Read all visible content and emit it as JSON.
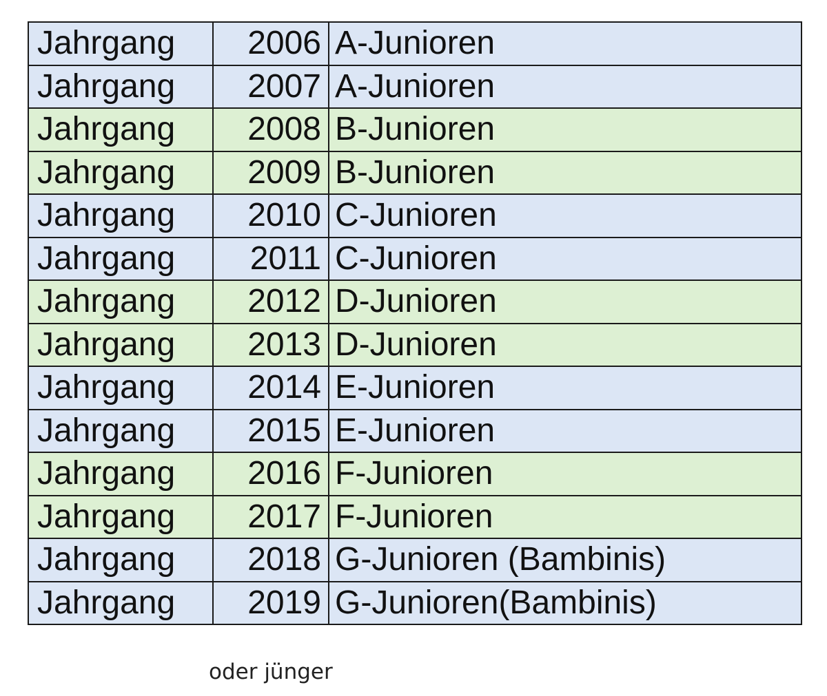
{
  "colors": {
    "blue_row": "#dce6f5",
    "green_row": "#ddf0d3",
    "border": "#1a1a1a"
  },
  "rows": [
    {
      "label": "Jahrgang",
      "year": "2006",
      "team": "A-Junioren",
      "shade": "blue"
    },
    {
      "label": "Jahrgang",
      "year": "2007",
      "team": "A-Junioren",
      "shade": "blue"
    },
    {
      "label": "Jahrgang",
      "year": "2008",
      "team": "B-Junioren",
      "shade": "green"
    },
    {
      "label": "Jahrgang",
      "year": "2009",
      "team": "B-Junioren",
      "shade": "green"
    },
    {
      "label": "Jahrgang",
      "year": "2010",
      "team": "C-Junioren",
      "shade": "blue"
    },
    {
      "label": "Jahrgang",
      "year": "2011",
      "team": "C-Junioren",
      "shade": "blue"
    },
    {
      "label": "Jahrgang",
      "year": "2012",
      "team": "D-Junioren",
      "shade": "green"
    },
    {
      "label": "Jahrgang",
      "year": "2013",
      "team": "D-Junioren",
      "shade": "green"
    },
    {
      "label": "Jahrgang",
      "year": "2014",
      "team": "E-Junioren",
      "shade": "blue"
    },
    {
      "label": "Jahrgang",
      "year": "2015",
      "team": "E-Junioren",
      "shade": "blue"
    },
    {
      "label": "Jahrgang",
      "year": "2016",
      "team": "F-Junioren",
      "shade": "green"
    },
    {
      "label": "Jahrgang",
      "year": "2017",
      "team": "F-Junioren",
      "shade": "green"
    },
    {
      "label": "Jahrgang",
      "year": "2018",
      "team": "G-Junioren (Bambinis)",
      "shade": "blue"
    },
    {
      "label": "Jahrgang",
      "year": "2019",
      "team": "G-Junioren(Bambinis)",
      "shade": "blue"
    }
  ],
  "footnote": "oder jünger"
}
